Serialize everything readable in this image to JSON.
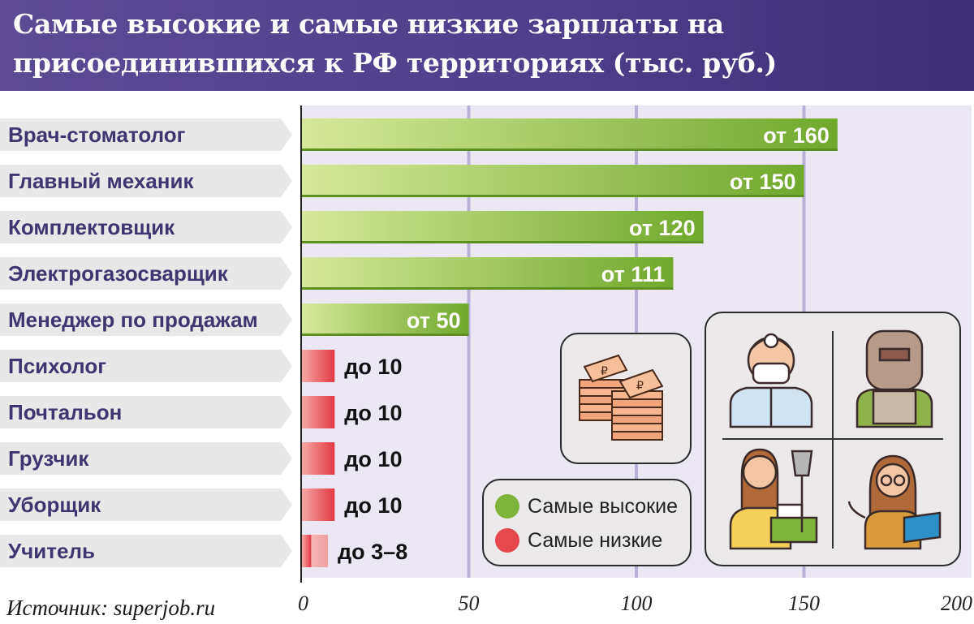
{
  "header": {
    "title": "Самые высокие и самые низкие зарплаты на присоединившихся к РФ территориях (тыс. руб.)"
  },
  "source": "Источник: superjob.ru",
  "legend": {
    "high_label": "Самые высокие",
    "low_label": "Самые низкие"
  },
  "icons": [
    "money-stack-icon",
    "dentist-icon",
    "welder-icon",
    "cleaner-icon",
    "teacher-icon"
  ],
  "colors": {
    "high": "#7fb43a",
    "low": "#e5484d",
    "header": "#4f3f8c"
  },
  "chart_data": {
    "type": "bar",
    "orientation": "horizontal",
    "title": "Самые высокие и самые низкие зарплаты на присоединившихся к РФ территориях (тыс. руб.)",
    "xlim": [
      0,
      200
    ],
    "x_ticks": [
      0,
      50,
      100,
      150,
      200
    ],
    "grid": true,
    "legend_position": "bottom-right",
    "categories": [
      "Врач-стоматолог",
      "Главный механик",
      "Комплектовщик",
      "Электрогазосварщик",
      "Менеджер по продажам",
      "Психолог",
      "Почтальон",
      "Грузчик",
      "Уборщик",
      "Учитель"
    ],
    "bars": [
      {
        "category": "Врач-стоматолог",
        "value": 160,
        "label": "от 160",
        "group": "high"
      },
      {
        "category": "Главный механик",
        "value": 150,
        "label": "от 150",
        "group": "high"
      },
      {
        "category": "Комплектовщик",
        "value": 120,
        "label": "от 120",
        "group": "high"
      },
      {
        "category": "Электрогазосварщик",
        "value": 111,
        "label": "от 111",
        "group": "high"
      },
      {
        "category": "Менеджер по продажам",
        "value": 50,
        "label": "от 50",
        "group": "high"
      },
      {
        "category": "Психолог",
        "value": 10,
        "label": "до 10",
        "group": "low"
      },
      {
        "category": "Почтальон",
        "value": 10,
        "label": "до 10",
        "group": "low"
      },
      {
        "category": "Грузчик",
        "value": 10,
        "label": "до 10",
        "group": "low"
      },
      {
        "category": "Уборщик",
        "value": 10,
        "label": "до 10",
        "group": "low"
      },
      {
        "category": "Учитель",
        "value": 8,
        "value_min": 3,
        "label": "до 3–8",
        "group": "low"
      }
    ]
  }
}
